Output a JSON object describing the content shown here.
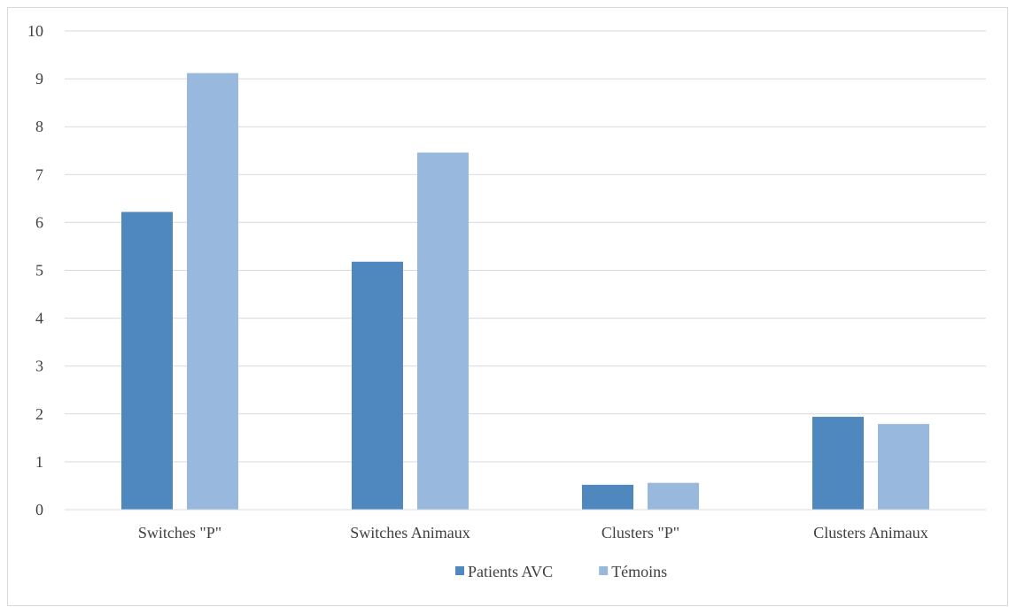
{
  "chart_data": {
    "type": "bar",
    "title": "",
    "xlabel": "",
    "ylabel": "",
    "categories": [
      "Switches \"P\"",
      "Switches Animaux",
      "Clusters \"P\"",
      "Clusters Animaux"
    ],
    "series": [
      {
        "name": "Patients AVC",
        "color": "#4f88bf",
        "values": [
          6.22,
          5.18,
          0.52,
          1.94
        ]
      },
      {
        "name": "Témoins",
        "color": "#98b8de",
        "values": [
          9.12,
          7.46,
          0.56,
          1.79
        ]
      }
    ],
    "ylim": [
      0,
      10
    ],
    "yticks": [
      0,
      1,
      2,
      3,
      4,
      5,
      6,
      7,
      8,
      9,
      10
    ],
    "grid": true,
    "legend_position": "bottom"
  }
}
